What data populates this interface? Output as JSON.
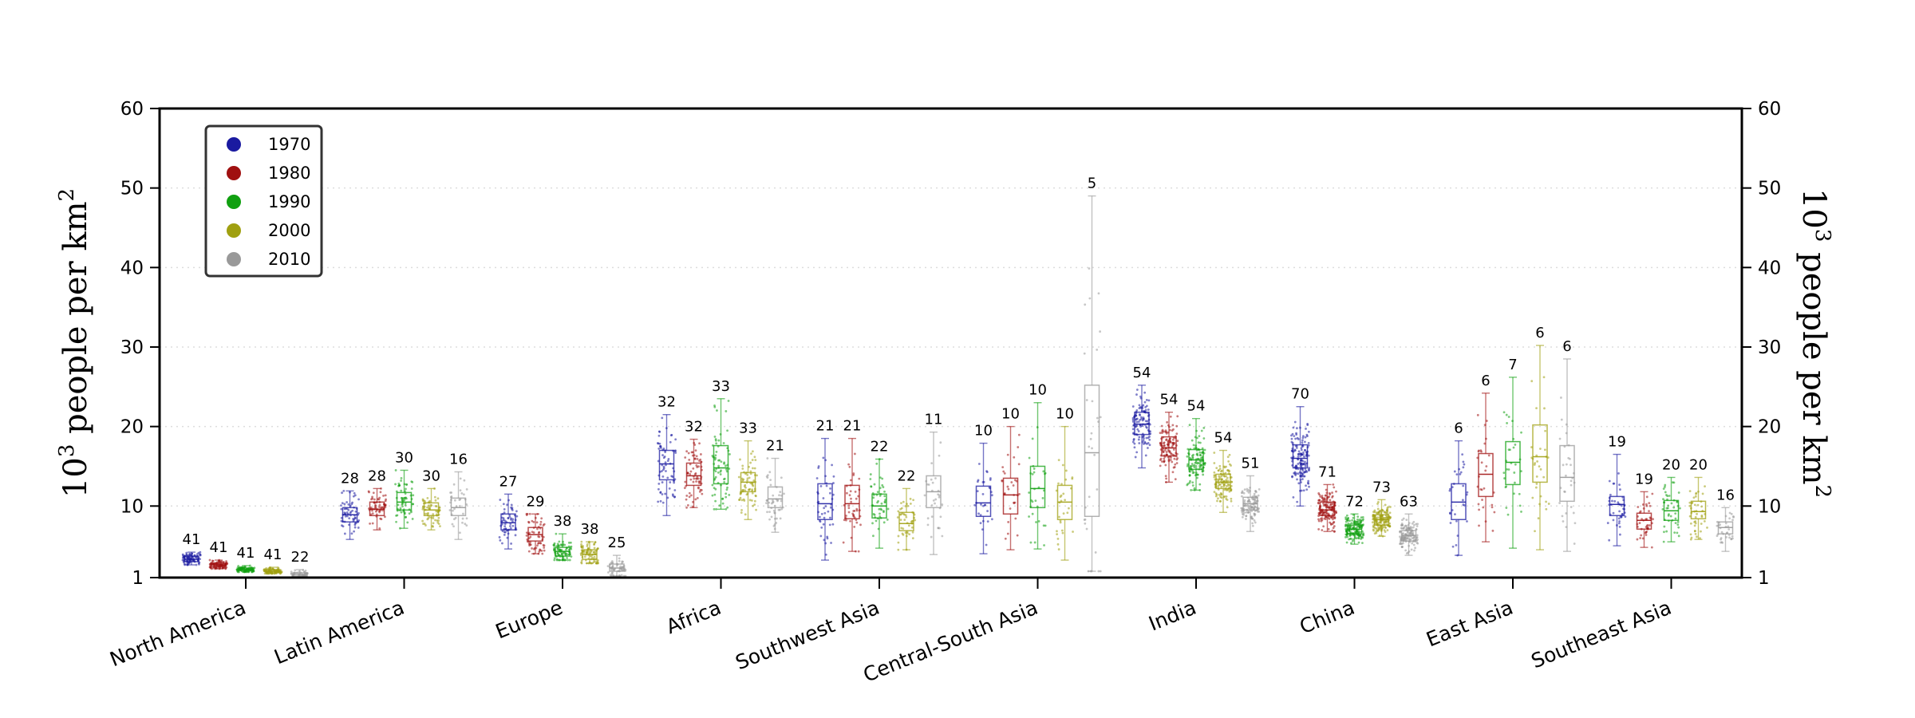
{
  "chart_data": {
    "type": "box-strip",
    "ylabel": "10^3 people per km^2",
    "ylabel_base": "10",
    "ylabel_exp": "3",
    "ylabel_mid": " people per km",
    "ylabel_exp2": "2",
    "ylim": [
      1,
      60
    ],
    "yticks": [
      1,
      10,
      20,
      30,
      40,
      50,
      60
    ],
    "grid": "horizontal dotted",
    "legend_position": "top-left",
    "categories": [
      "North America",
      "Latin America",
      "Europe",
      "Africa",
      "Southwest Asia",
      "Central-South Asia",
      "India",
      "China",
      "East Asia",
      "Southeast Asia"
    ],
    "series": [
      {
        "name": "1970",
        "color": "#1a1aa0"
      },
      {
        "name": "1980",
        "color": "#a01010"
      },
      {
        "name": "1990",
        "color": "#10a010"
      },
      {
        "name": "2000",
        "color": "#a0a010"
      },
      {
        "name": "2010",
        "color": "#999999"
      }
    ],
    "boxes": [
      [
        {
          "min": 2.6,
          "q1": 3.0,
          "median": 3.3,
          "q3": 3.7,
          "max": 4.2,
          "n": 41
        },
        {
          "min": 2.1,
          "q1": 2.4,
          "median": 2.6,
          "q3": 2.8,
          "max": 3.2,
          "n": 41
        },
        {
          "min": 1.7,
          "q1": 1.9,
          "median": 2.0,
          "q3": 2.2,
          "max": 2.5,
          "n": 41
        },
        {
          "min": 1.5,
          "q1": 1.7,
          "median": 1.8,
          "q3": 2.0,
          "max": 2.3,
          "n": 41
        },
        {
          "min": 1.0,
          "q1": 1.2,
          "median": 1.4,
          "q3": 1.6,
          "max": 2.0,
          "n": 22
        }
      ],
      [
        {
          "min": 5.8,
          "q1": 8.0,
          "median": 8.9,
          "q3": 9.8,
          "max": 11.9,
          "n": 28
        },
        {
          "min": 7.0,
          "q1": 8.8,
          "median": 9.6,
          "q3": 10.5,
          "max": 12.2,
          "n": 28
        },
        {
          "min": 7.2,
          "q1": 9.5,
          "median": 10.5,
          "q3": 11.7,
          "max": 14.5,
          "n": 30
        },
        {
          "min": 7.0,
          "q1": 8.8,
          "median": 9.5,
          "q3": 10.4,
          "max": 12.2,
          "n": 30
        },
        {
          "min": 5.8,
          "q1": 8.8,
          "median": 9.8,
          "q3": 11.0,
          "max": 14.3,
          "n": 16
        }
      ],
      [
        {
          "min": 4.6,
          "q1": 7.0,
          "median": 7.9,
          "q3": 9.0,
          "max": 11.5,
          "n": 27
        },
        {
          "min": 4.0,
          "q1": 5.6,
          "median": 6.4,
          "q3": 7.3,
          "max": 9.0,
          "n": 29
        },
        {
          "min": 3.2,
          "q1": 3.7,
          "median": 4.3,
          "q3": 4.8,
          "max": 6.5,
          "n": 38
        },
        {
          "min": 2.8,
          "q1": 3.3,
          "median": 3.9,
          "q3": 4.5,
          "max": 5.5,
          "n": 38
        },
        {
          "min": 1.2,
          "q1": 1.8,
          "median": 2.2,
          "q3": 2.7,
          "max": 3.8,
          "n": 25
        }
      ],
      [
        {
          "min": 8.8,
          "q1": 13.3,
          "median": 15.3,
          "q3": 17.0,
          "max": 21.5,
          "n": 32
        },
        {
          "min": 9.8,
          "q1": 12.6,
          "median": 13.8,
          "q3": 15.4,
          "max": 18.4,
          "n": 32
        },
        {
          "min": 9.6,
          "q1": 12.8,
          "median": 14.8,
          "q3": 17.6,
          "max": 23.5,
          "n": 33
        },
        {
          "min": 8.3,
          "q1": 11.8,
          "median": 13.0,
          "q3": 14.2,
          "max": 18.2,
          "n": 33
        },
        {
          "min": 6.7,
          "q1": 9.8,
          "median": 10.9,
          "q3": 12.4,
          "max": 16.0,
          "n": 21
        }
      ],
      [
        {
          "min": 3.2,
          "q1": 8.3,
          "median": 10.3,
          "q3": 12.8,
          "max": 18.5,
          "n": 21
        },
        {
          "min": 4.3,
          "q1": 8.4,
          "median": 10.3,
          "q3": 12.6,
          "max": 18.5,
          "n": 21
        },
        {
          "min": 4.7,
          "q1": 8.5,
          "median": 10.0,
          "q3": 11.5,
          "max": 15.9,
          "n": 22
        },
        {
          "min": 4.5,
          "q1": 6.9,
          "median": 7.8,
          "q3": 9.2,
          "max": 12.2,
          "n": 22
        },
        {
          "min": 3.9,
          "q1": 9.8,
          "median": 11.8,
          "q3": 13.8,
          "max": 19.3,
          "n": 11
        }
      ],
      [
        {
          "min": 4.0,
          "q1": 8.7,
          "median": 10.4,
          "q3": 12.5,
          "max": 17.9,
          "n": 10
        },
        {
          "min": 4.5,
          "q1": 9.0,
          "median": 11.4,
          "q3": 13.5,
          "max": 20.0,
          "n": 10
        },
        {
          "min": 4.6,
          "q1": 9.8,
          "median": 12.2,
          "q3": 15.0,
          "max": 23.0,
          "n": 10
        },
        {
          "min": 3.2,
          "q1": 8.3,
          "median": 10.5,
          "q3": 12.6,
          "max": 20.0,
          "n": 10
        },
        {
          "min": 1.8,
          "q1": 8.7,
          "median": 16.7,
          "q3": 25.2,
          "max": 49.0,
          "n": 5
        }
      ],
      [
        {
          "min": 14.8,
          "q1": 19.0,
          "median": 20.3,
          "q3": 21.8,
          "max": 25.2,
          "n": 54
        },
        {
          "min": 13.0,
          "q1": 16.3,
          "median": 17.3,
          "q3": 18.7,
          "max": 21.8,
          "n": 54
        },
        {
          "min": 12.0,
          "q1": 14.6,
          "median": 15.8,
          "q3": 17.1,
          "max": 21.0,
          "n": 54
        },
        {
          "min": 9.2,
          "q1": 12.2,
          "median": 13.0,
          "q3": 14.0,
          "max": 17.0,
          "n": 54
        },
        {
          "min": 6.8,
          "q1": 9.5,
          "median": 10.3,
          "q3": 11.1,
          "max": 13.8,
          "n": 51
        }
      ],
      [
        {
          "min": 10.0,
          "q1": 14.8,
          "median": 16.0,
          "q3": 17.7,
          "max": 22.5,
          "n": 70
        },
        {
          "min": 6.8,
          "q1": 8.8,
          "median": 9.5,
          "q3": 10.5,
          "max": 12.7,
          "n": 71
        },
        {
          "min": 5.2,
          "q1": 6.5,
          "median": 7.1,
          "q3": 7.6,
          "max": 9.0,
          "n": 72
        },
        {
          "min": 6.2,
          "q1": 7.6,
          "median": 8.3,
          "q3": 8.9,
          "max": 10.8,
          "n": 73
        },
        {
          "min": 3.8,
          "q1": 5.6,
          "median": 6.3,
          "q3": 6.9,
          "max": 9.0,
          "n": 63
        }
      ],
      [
        {
          "min": 3.8,
          "q1": 8.3,
          "median": 10.5,
          "q3": 12.8,
          "max": 18.2,
          "n": 6
        },
        {
          "min": 5.5,
          "q1": 11.2,
          "median": 14.0,
          "q3": 16.6,
          "max": 24.2,
          "n": 6
        },
        {
          "min": 4.7,
          "q1": 12.7,
          "median": 15.5,
          "q3": 18.1,
          "max": 26.2,
          "n": 7
        },
        {
          "min": 4.5,
          "q1": 13.0,
          "median": 16.2,
          "q3": 20.2,
          "max": 30.2,
          "n": 6
        },
        {
          "min": 4.3,
          "q1": 10.6,
          "median": 13.6,
          "q3": 17.6,
          "max": 28.5,
          "n": 6
        }
      ],
      [
        {
          "min": 5.0,
          "q1": 8.8,
          "median": 10.2,
          "q3": 11.2,
          "max": 16.5,
          "n": 19
        },
        {
          "min": 4.8,
          "q1": 7.1,
          "median": 8.2,
          "q3": 9.1,
          "max": 11.8,
          "n": 19
        },
        {
          "min": 5.5,
          "q1": 8.2,
          "median": 9.4,
          "q3": 10.7,
          "max": 13.6,
          "n": 20
        },
        {
          "min": 5.8,
          "q1": 8.4,
          "median": 9.3,
          "q3": 10.6,
          "max": 13.6,
          "n": 20
        },
        {
          "min": 4.3,
          "q1": 6.5,
          "median": 7.3,
          "q3": 8.0,
          "max": 9.8,
          "n": 16
        }
      ]
    ]
  }
}
